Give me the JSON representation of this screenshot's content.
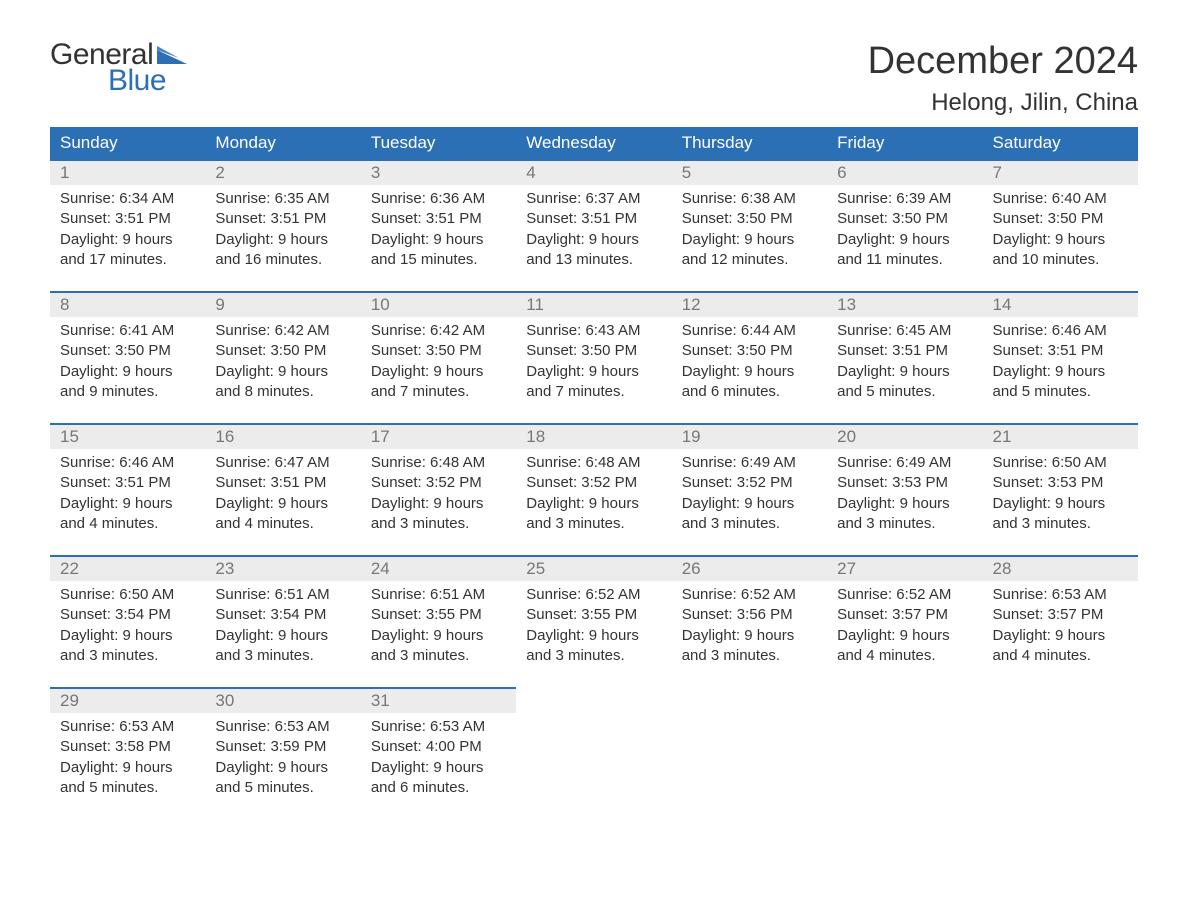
{
  "brand": {
    "word1": "General",
    "word2": "Blue",
    "flag_color": "#2b6fb5"
  },
  "title": "December 2024",
  "location": "Helong, Jilin, China",
  "colors": {
    "header_bg": "#2b6fb5",
    "header_text": "#ffffff",
    "daynum_bg": "#ececec",
    "daynum_text": "#777777",
    "row_border": "#2b6fb5",
    "body_text": "#333333",
    "background": "#ffffff"
  },
  "columns": [
    "Sunday",
    "Monday",
    "Tuesday",
    "Wednesday",
    "Thursday",
    "Friday",
    "Saturday"
  ],
  "weeks": [
    [
      {
        "day": "1",
        "sunrise": "Sunrise: 6:34 AM",
        "sunset": "Sunset: 3:51 PM",
        "dl1": "Daylight: 9 hours",
        "dl2": "and 17 minutes."
      },
      {
        "day": "2",
        "sunrise": "Sunrise: 6:35 AM",
        "sunset": "Sunset: 3:51 PM",
        "dl1": "Daylight: 9 hours",
        "dl2": "and 16 minutes."
      },
      {
        "day": "3",
        "sunrise": "Sunrise: 6:36 AM",
        "sunset": "Sunset: 3:51 PM",
        "dl1": "Daylight: 9 hours",
        "dl2": "and 15 minutes."
      },
      {
        "day": "4",
        "sunrise": "Sunrise: 6:37 AM",
        "sunset": "Sunset: 3:51 PM",
        "dl1": "Daylight: 9 hours",
        "dl2": "and 13 minutes."
      },
      {
        "day": "5",
        "sunrise": "Sunrise: 6:38 AM",
        "sunset": "Sunset: 3:50 PM",
        "dl1": "Daylight: 9 hours",
        "dl2": "and 12 minutes."
      },
      {
        "day": "6",
        "sunrise": "Sunrise: 6:39 AM",
        "sunset": "Sunset: 3:50 PM",
        "dl1": "Daylight: 9 hours",
        "dl2": "and 11 minutes."
      },
      {
        "day": "7",
        "sunrise": "Sunrise: 6:40 AM",
        "sunset": "Sunset: 3:50 PM",
        "dl1": "Daylight: 9 hours",
        "dl2": "and 10 minutes."
      }
    ],
    [
      {
        "day": "8",
        "sunrise": "Sunrise: 6:41 AM",
        "sunset": "Sunset: 3:50 PM",
        "dl1": "Daylight: 9 hours",
        "dl2": "and 9 minutes."
      },
      {
        "day": "9",
        "sunrise": "Sunrise: 6:42 AM",
        "sunset": "Sunset: 3:50 PM",
        "dl1": "Daylight: 9 hours",
        "dl2": "and 8 minutes."
      },
      {
        "day": "10",
        "sunrise": "Sunrise: 6:42 AM",
        "sunset": "Sunset: 3:50 PM",
        "dl1": "Daylight: 9 hours",
        "dl2": "and 7 minutes."
      },
      {
        "day": "11",
        "sunrise": "Sunrise: 6:43 AM",
        "sunset": "Sunset: 3:50 PM",
        "dl1": "Daylight: 9 hours",
        "dl2": "and 7 minutes."
      },
      {
        "day": "12",
        "sunrise": "Sunrise: 6:44 AM",
        "sunset": "Sunset: 3:50 PM",
        "dl1": "Daylight: 9 hours",
        "dl2": "and 6 minutes."
      },
      {
        "day": "13",
        "sunrise": "Sunrise: 6:45 AM",
        "sunset": "Sunset: 3:51 PM",
        "dl1": "Daylight: 9 hours",
        "dl2": "and 5 minutes."
      },
      {
        "day": "14",
        "sunrise": "Sunrise: 6:46 AM",
        "sunset": "Sunset: 3:51 PM",
        "dl1": "Daylight: 9 hours",
        "dl2": "and 5 minutes."
      }
    ],
    [
      {
        "day": "15",
        "sunrise": "Sunrise: 6:46 AM",
        "sunset": "Sunset: 3:51 PM",
        "dl1": "Daylight: 9 hours",
        "dl2": "and 4 minutes."
      },
      {
        "day": "16",
        "sunrise": "Sunrise: 6:47 AM",
        "sunset": "Sunset: 3:51 PM",
        "dl1": "Daylight: 9 hours",
        "dl2": "and 4 minutes."
      },
      {
        "day": "17",
        "sunrise": "Sunrise: 6:48 AM",
        "sunset": "Sunset: 3:52 PM",
        "dl1": "Daylight: 9 hours",
        "dl2": "and 3 minutes."
      },
      {
        "day": "18",
        "sunrise": "Sunrise: 6:48 AM",
        "sunset": "Sunset: 3:52 PM",
        "dl1": "Daylight: 9 hours",
        "dl2": "and 3 minutes."
      },
      {
        "day": "19",
        "sunrise": "Sunrise: 6:49 AM",
        "sunset": "Sunset: 3:52 PM",
        "dl1": "Daylight: 9 hours",
        "dl2": "and 3 minutes."
      },
      {
        "day": "20",
        "sunrise": "Sunrise: 6:49 AM",
        "sunset": "Sunset: 3:53 PM",
        "dl1": "Daylight: 9 hours",
        "dl2": "and 3 minutes."
      },
      {
        "day": "21",
        "sunrise": "Sunrise: 6:50 AM",
        "sunset": "Sunset: 3:53 PM",
        "dl1": "Daylight: 9 hours",
        "dl2": "and 3 minutes."
      }
    ],
    [
      {
        "day": "22",
        "sunrise": "Sunrise: 6:50 AM",
        "sunset": "Sunset: 3:54 PM",
        "dl1": "Daylight: 9 hours",
        "dl2": "and 3 minutes."
      },
      {
        "day": "23",
        "sunrise": "Sunrise: 6:51 AM",
        "sunset": "Sunset: 3:54 PM",
        "dl1": "Daylight: 9 hours",
        "dl2": "and 3 minutes."
      },
      {
        "day": "24",
        "sunrise": "Sunrise: 6:51 AM",
        "sunset": "Sunset: 3:55 PM",
        "dl1": "Daylight: 9 hours",
        "dl2": "and 3 minutes."
      },
      {
        "day": "25",
        "sunrise": "Sunrise: 6:52 AM",
        "sunset": "Sunset: 3:55 PM",
        "dl1": "Daylight: 9 hours",
        "dl2": "and 3 minutes."
      },
      {
        "day": "26",
        "sunrise": "Sunrise: 6:52 AM",
        "sunset": "Sunset: 3:56 PM",
        "dl1": "Daylight: 9 hours",
        "dl2": "and 3 minutes."
      },
      {
        "day": "27",
        "sunrise": "Sunrise: 6:52 AM",
        "sunset": "Sunset: 3:57 PM",
        "dl1": "Daylight: 9 hours",
        "dl2": "and 4 minutes."
      },
      {
        "day": "28",
        "sunrise": "Sunrise: 6:53 AM",
        "sunset": "Sunset: 3:57 PM",
        "dl1": "Daylight: 9 hours",
        "dl2": "and 4 minutes."
      }
    ],
    [
      {
        "day": "29",
        "sunrise": "Sunrise: 6:53 AM",
        "sunset": "Sunset: 3:58 PM",
        "dl1": "Daylight: 9 hours",
        "dl2": "and 5 minutes."
      },
      {
        "day": "30",
        "sunrise": "Sunrise: 6:53 AM",
        "sunset": "Sunset: 3:59 PM",
        "dl1": "Daylight: 9 hours",
        "dl2": "and 5 minutes."
      },
      {
        "day": "31",
        "sunrise": "Sunrise: 6:53 AM",
        "sunset": "Sunset: 4:00 PM",
        "dl1": "Daylight: 9 hours",
        "dl2": "and 6 minutes."
      },
      null,
      null,
      null,
      null
    ]
  ]
}
